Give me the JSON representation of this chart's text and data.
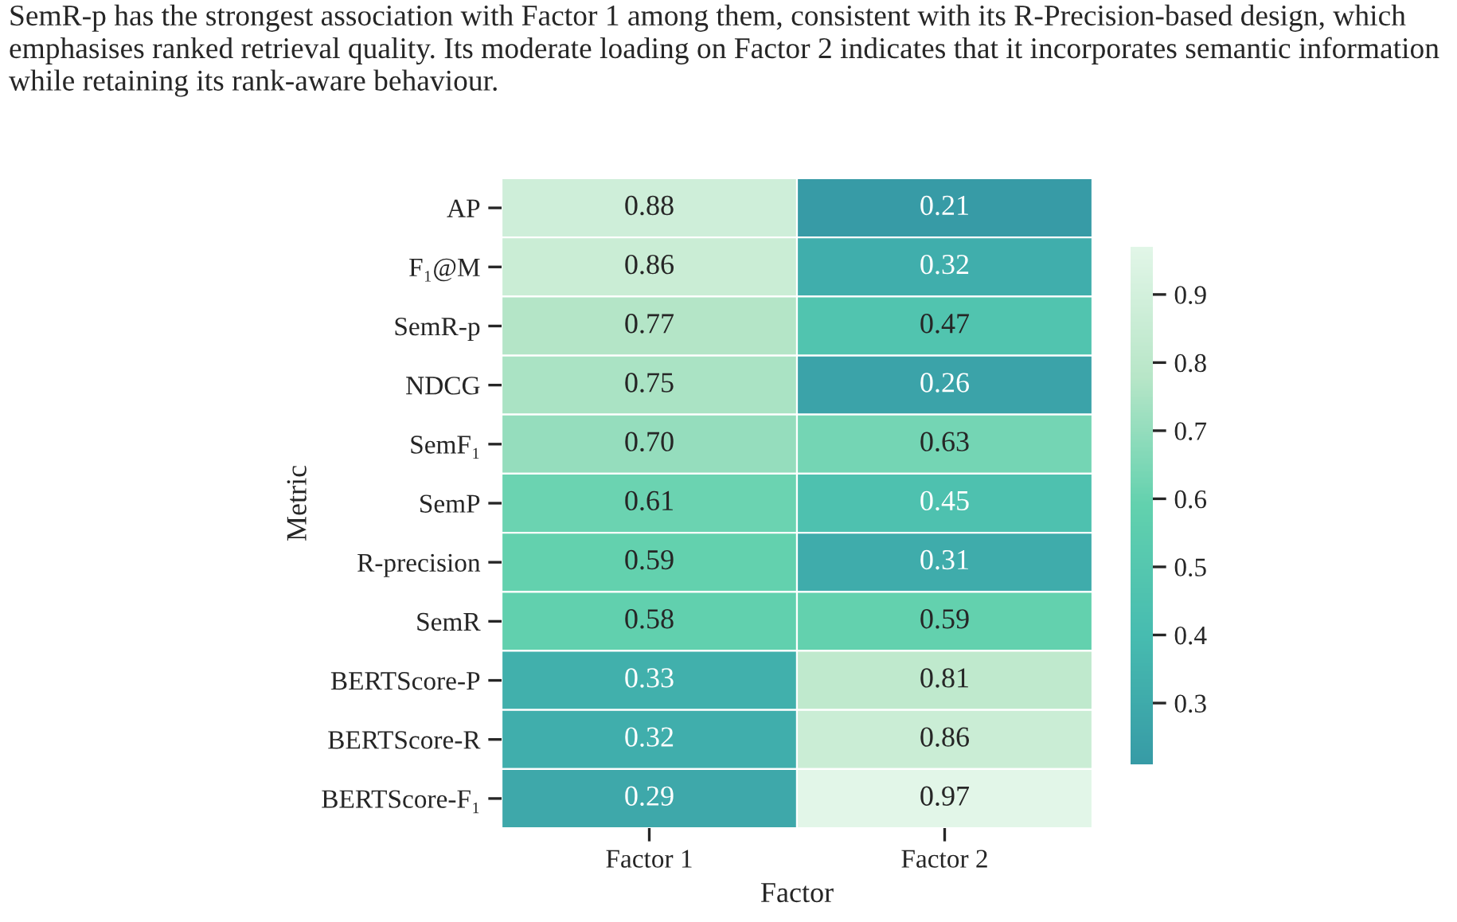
{
  "chart_data": {
    "type": "heatmap",
    "title": "SemR-p has the strongest association with Factor 1 among them, consistent with its R-Precision-based design, which emphasises ranked retrieval quality. Its moderate loading on Factor 2 indicates that it incorporates semantic information while retaining its rank-aware behaviour.",
    "xlabel": "Factor",
    "ylabel": "Metric",
    "categories": [
      "Factor 1",
      "Factor 2"
    ],
    "y_categories": [
      "AP",
      "F₁@M",
      "SemR-p",
      "NDCG",
      "SemF₁",
      "SemP",
      "R-precision",
      "SemR",
      "BERTScore-P",
      "BERTScore-R",
      "BERTScore-F₁"
    ],
    "cells": [
      [
        0.88,
        0.21
      ],
      [
        0.86,
        0.32
      ],
      [
        0.77,
        0.47
      ],
      [
        0.75,
        0.26
      ],
      [
        0.7,
        0.63
      ],
      [
        0.61,
        0.45
      ],
      [
        0.59,
        0.31
      ],
      [
        0.58,
        0.59
      ],
      [
        0.33,
        0.81
      ],
      [
        0.32,
        0.86
      ],
      [
        0.29,
        0.97
      ]
    ],
    "cell_labels": [
      [
        "0.88",
        "0.21"
      ],
      [
        "0.86",
        "0.32"
      ],
      [
        "0.77",
        "0.47"
      ],
      [
        "0.75",
        "0.26"
      ],
      [
        "0.70",
        "0.63"
      ],
      [
        "0.61",
        "0.45"
      ],
      [
        "0.59",
        "0.31"
      ],
      [
        "0.58",
        "0.59"
      ],
      [
        "0.33",
        "0.81"
      ],
      [
        "0.32",
        "0.86"
      ],
      [
        "0.29",
        "0.97"
      ]
    ],
    "colors": [
      "#379ba6",
      "#47bcb0",
      "#62d1ae",
      "#b8e6c8",
      "#e2f6e8"
    ],
    "clim": [
      0.21,
      0.97
    ],
    "cticks": [
      0.3,
      0.4,
      0.5,
      0.6,
      0.7,
      0.8,
      0.9
    ]
  }
}
